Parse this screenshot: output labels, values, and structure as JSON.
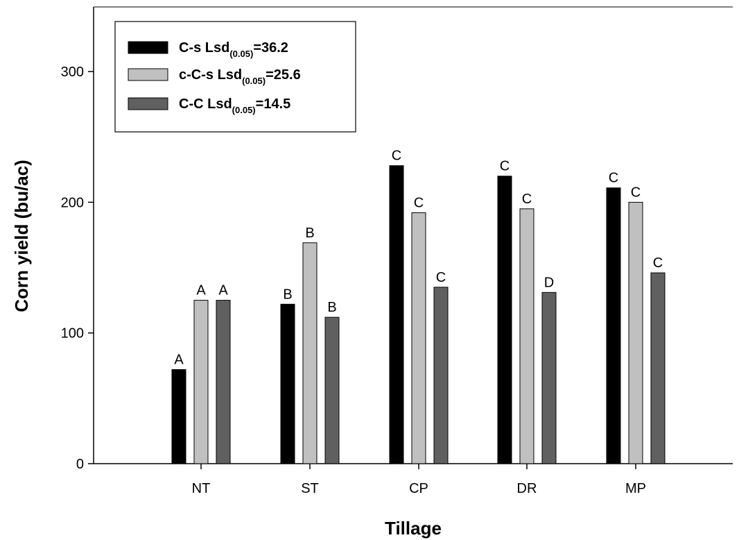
{
  "chart_data": {
    "type": "bar",
    "title": "",
    "xlabel": "Tillage",
    "ylabel": "Corn yield (bu/ac)",
    "categories": [
      "NT",
      "ST",
      "CP",
      "DR",
      "MP"
    ],
    "ylim": [
      0,
      350
    ],
    "yticks": [
      0,
      100,
      200,
      300
    ],
    "grid": false,
    "legend_position": "top-left",
    "series": [
      {
        "name": "C-s Lsd(0.05)=36.2",
        "legend": {
          "main": "C-s Lsd",
          "sub": "(0.05)",
          "value": "=36.2"
        },
        "color": "#000000",
        "values": [
          72,
          122,
          228,
          220,
          211
        ],
        "labels": [
          "A",
          "B",
          "C",
          "C",
          "C"
        ]
      },
      {
        "name": "c-C-s Lsd(0.05)=25.6",
        "legend": {
          "main": "c-C-s Lsd",
          "sub": "(0.05)",
          "value": "=25.6"
        },
        "color": "#c0c0c0",
        "values": [
          125,
          169,
          192,
          195,
          200
        ],
        "labels": [
          "A",
          "B",
          "C",
          "C",
          "C"
        ]
      },
      {
        "name": "C-C Lsd(0.05)=14.5",
        "legend": {
          "main": "C-C Lsd",
          "sub": "(0.05)",
          "value": "=14.5"
        },
        "color": "#606060",
        "values": [
          125,
          112,
          135,
          131,
          146
        ],
        "labels": [
          "A",
          "B",
          "C",
          "D",
          "C"
        ]
      }
    ]
  }
}
